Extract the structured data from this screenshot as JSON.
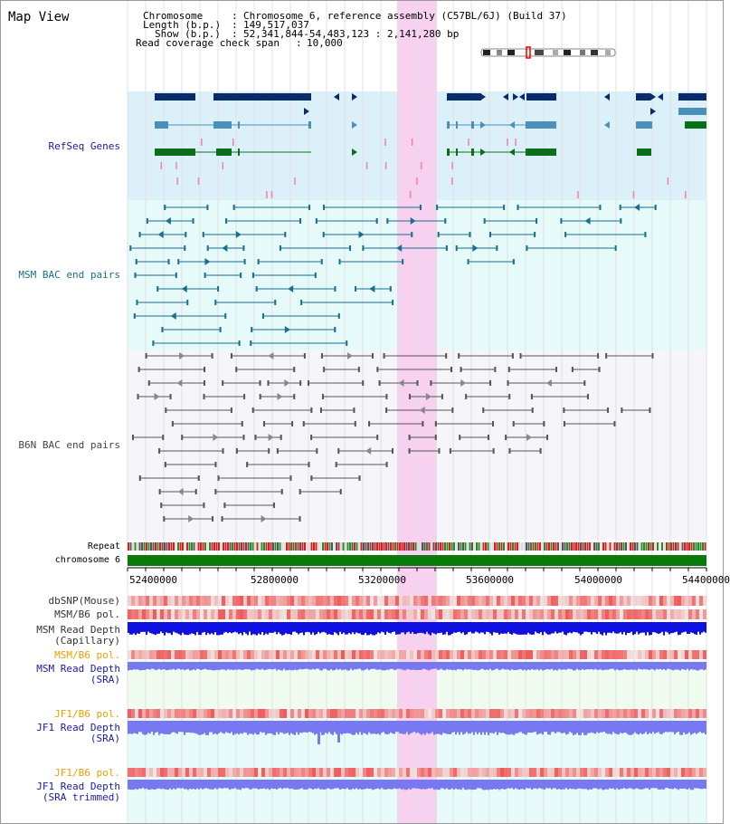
{
  "title": "Map View",
  "header": {
    "chromosome_label": "Chromosome",
    "chromosome_value": "Chromosome 6, reference assembly (C57BL/6J) (Build 37)",
    "length_label": "Length (b.p.)",
    "length_value": "149,517,037",
    "show_label": "Show (b.p.)",
    "show_value": "52,341,844-54,483,123 : 2,141,280 bp",
    "coverage_label": "Read coverage check span",
    "coverage_value": "10,000"
  },
  "tracks": {
    "refseq": "RefSeq Genes",
    "msm_bac": "MSM BAC end pairs",
    "b6n_bac": "B6N BAC end pairs",
    "repeat": "Repeat",
    "chromosome": "chromosome 6"
  },
  "axis_ticks": [
    "52400000",
    "52800000",
    "53200000",
    "53600000",
    "54000000",
    "54400000"
  ],
  "lower_tracks": [
    {
      "line1": "dbSNP(Mouse)",
      "line2": "",
      "color": "#333333"
    },
    {
      "line1": "MSM/B6 pol.",
      "line2": "",
      "color": "#333333"
    },
    {
      "line1": "MSM Read Depth",
      "line2": "(Capillary)",
      "color": "#333333"
    },
    {
      "line1": "MSM/B6 pol.",
      "line2": "",
      "color": "#e8a000"
    },
    {
      "line1": "MSM Read Depth",
      "line2": "(SRA)",
      "color": "#1a1aa0"
    },
    {
      "line1": "JF1/B6 pol.",
      "line2": "",
      "color": "#e8a000"
    },
    {
      "line1": "JF1 Read Depth",
      "line2": "(SRA)",
      "color": "#1a1aa0"
    },
    {
      "line1": "JF1/B6 pol.",
      "line2": "",
      "color": "#e8a000"
    },
    {
      "line1": "JF1 Read Depth",
      "line2": "(SRA trimmed)",
      "color": "#1a1aa0"
    }
  ],
  "colors": {
    "gene_navy": "#0a2a6e",
    "gene_blue": "#4a90b8",
    "gene_green": "#0a6e1a",
    "msm_teal": "#1a6e8e",
    "b6n_gray": "#555555",
    "highlight": "#f8d0f0",
    "chrom_green": "#0a7a0a",
    "depth_blue": "#1010e0",
    "depth_light": "#7878f0"
  }
}
